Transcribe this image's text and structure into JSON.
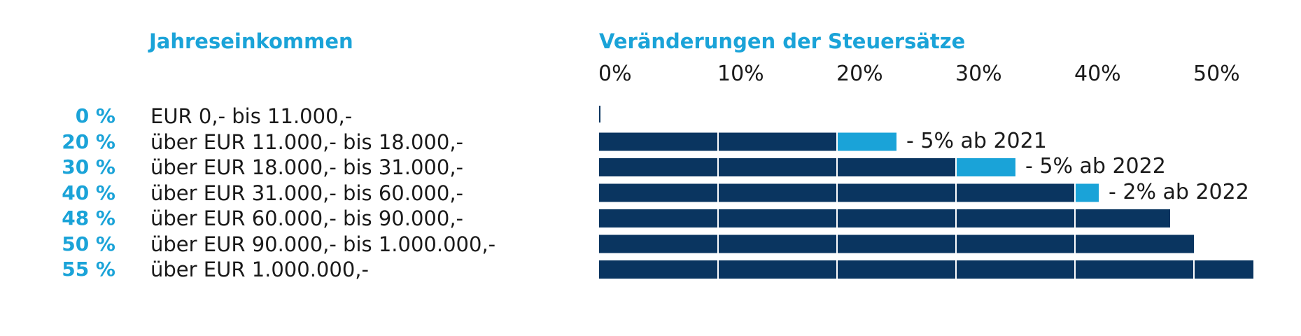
{
  "colors": {
    "accent": "#1aa3d8",
    "bar": "#0a3560",
    "change": "#1aa3d8",
    "text": "#1a1a1a"
  },
  "headings": {
    "left": "Jahreseinkommen",
    "right": "Veränderungen der Steuersätze"
  },
  "chart_data": {
    "type": "bar",
    "orientation": "horizontal",
    "title": "Veränderungen der Steuersätze",
    "xlim": [
      0,
      50
    ],
    "x_ticks": [
      "0%",
      "10%",
      "20%",
      "30%",
      "40%",
      "50%"
    ],
    "rows": [
      {
        "rate_label": "0 %",
        "range": "EUR 0,- bis 11.000,-",
        "value": 0,
        "change": 0,
        "note": ""
      },
      {
        "rate_label": "20 %",
        "range": "über EUR 11.000,- bis 18.000,-",
        "value": 20,
        "change": 5,
        "note": "- 5% ab 2021"
      },
      {
        "rate_label": "30 %",
        "range": "über EUR 18.000,- bis 31.000,-",
        "value": 30,
        "change": 5,
        "note": "- 5% ab 2022"
      },
      {
        "rate_label": "40 %",
        "range": "über EUR 31.000,- bis 60.000,-",
        "value": 40,
        "change": 2,
        "note": "- 2% ab 2022"
      },
      {
        "rate_label": "48 %",
        "range": "über EUR 60.000,- bis 90.000,-",
        "value": 48,
        "change": 0,
        "note": ""
      },
      {
        "rate_label": "50 %",
        "range": "über EUR 90.000,- bis 1.000.000,-",
        "value": 50,
        "change": 0,
        "note": ""
      },
      {
        "rate_label": "55 %",
        "range": "über EUR 1.000.000,-",
        "value": 55,
        "change": 0,
        "note": ""
      }
    ]
  }
}
